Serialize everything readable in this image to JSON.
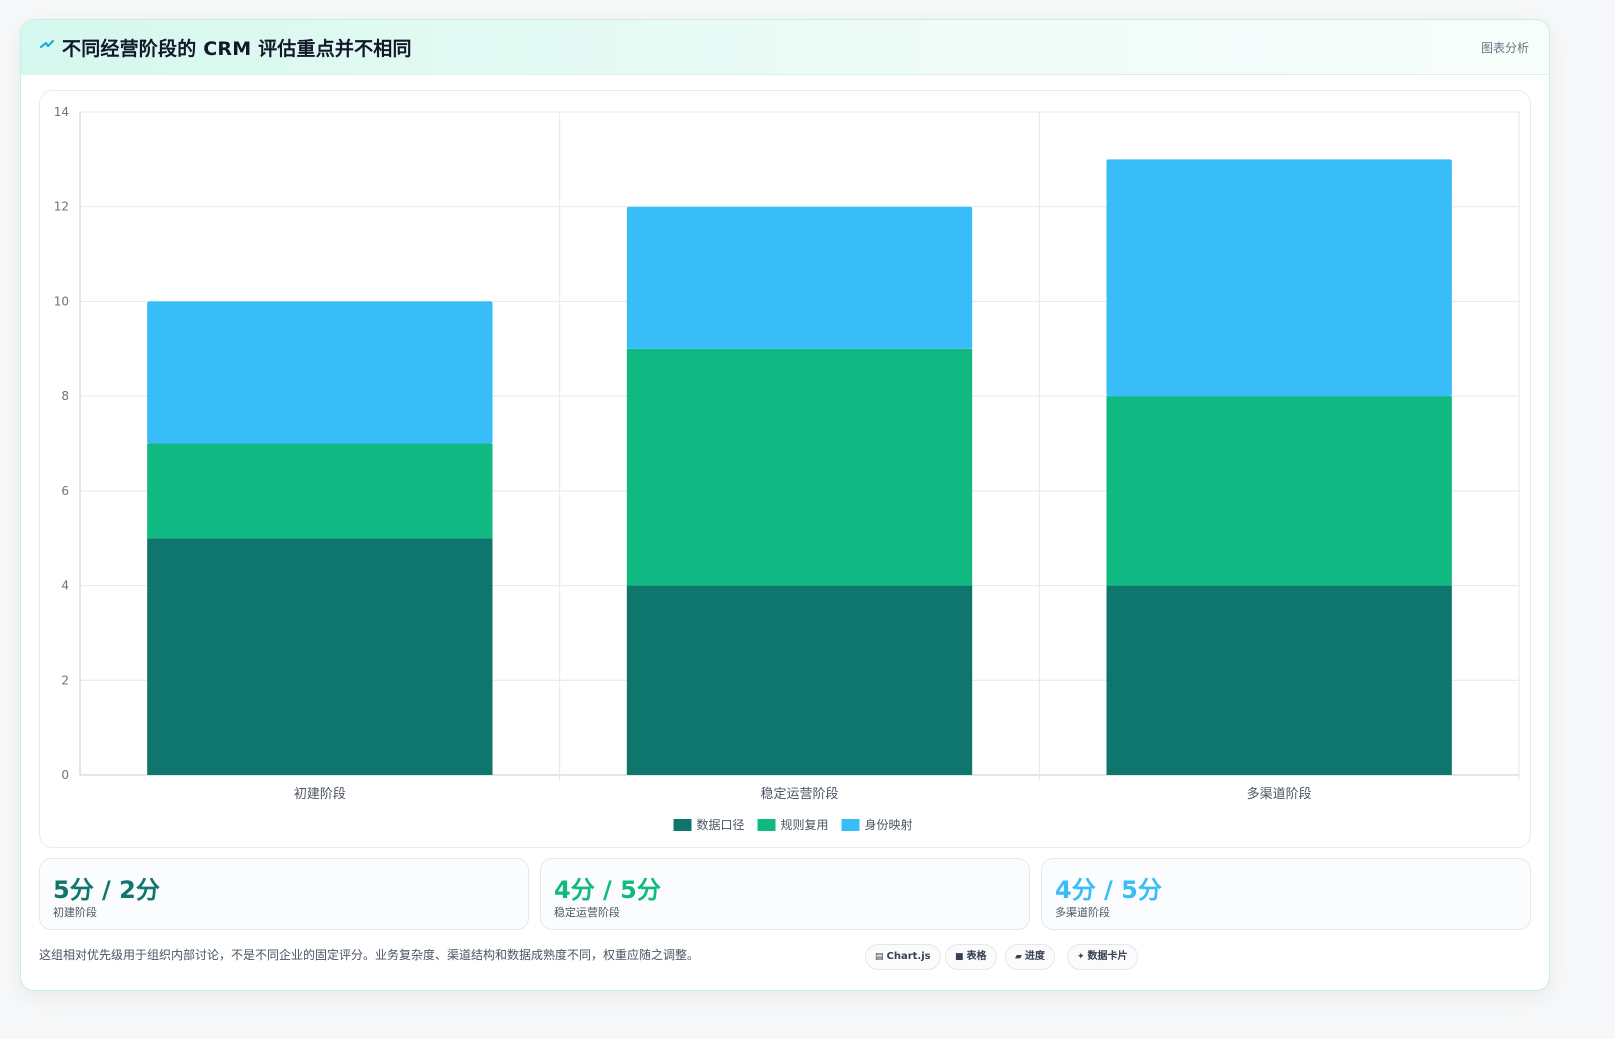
{
  "header": {
    "title": "不同经营阶段的 CRM 评估重点并不相同",
    "tag": "图表分析",
    "logo_icon": "spark-icon"
  },
  "chart_data": {
    "type": "bar",
    "stacked": true,
    "categories": [
      "初建阶段",
      "稳定运营阶段",
      "多渠道阶段"
    ],
    "series": [
      {
        "name": "数据口径",
        "values": [
          5,
          4,
          4
        ],
        "color": "#0f766e"
      },
      {
        "name": "规则复用",
        "values": [
          2,
          5,
          4
        ],
        "color": "#10b981"
      },
      {
        "name": "身份映射",
        "values": [
          3,
          3,
          5
        ],
        "color": "#38bdf8"
      }
    ],
    "ylim": [
      0,
      14
    ],
    "yticks": [
      0,
      2,
      4,
      6,
      8,
      10,
      12,
      14
    ],
    "grid": true,
    "legend_position": "bottom"
  },
  "stats": [
    {
      "value": "5分 / 2分",
      "label": "初建阶段",
      "color": "#0f766e"
    },
    {
      "value": "4分 / 5分",
      "label": "稳定运营阶段",
      "color": "#10b981"
    },
    {
      "value": "4分 / 5分",
      "label": "多渠道阶段",
      "color": "#38bdf8"
    }
  ],
  "note": "这组相对优先级用于组织内部讨论，不是不同企业的固定评分。业务复杂度、渠道结构和数据成熟度不同，权重应随之调整。",
  "pills": [
    {
      "icon": "chart-icon",
      "glyph": "▤",
      "label": "Chart.js"
    },
    {
      "icon": "table-icon",
      "glyph": "■",
      "label": "表格"
    },
    {
      "icon": "progress-icon",
      "glyph": "▰",
      "label": "进度"
    },
    {
      "icon": "card-icon",
      "glyph": "✦",
      "label": "数据卡片"
    }
  ]
}
